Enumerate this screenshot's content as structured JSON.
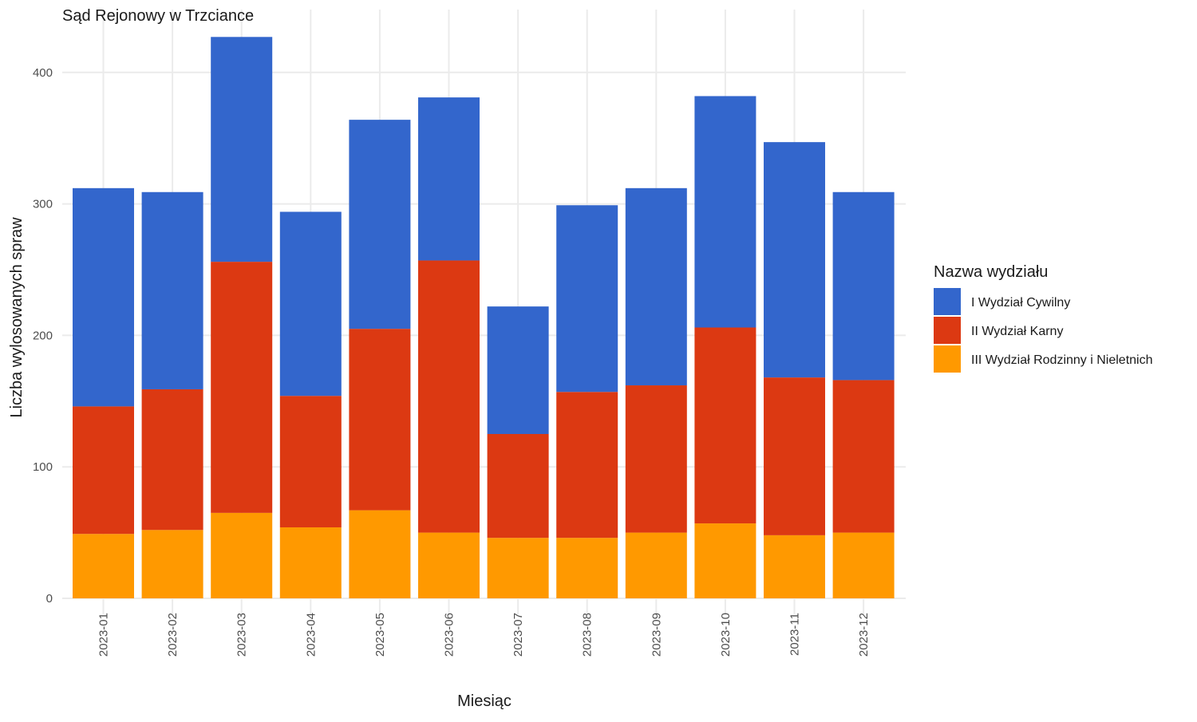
{
  "chart_data": {
    "type": "bar",
    "stacked": true,
    "title": "Sąd Rejonowy w Trzciance",
    "xlabel": "Miesiąc",
    "ylabel": "Liczba wylosowanych spraw",
    "ylim": [
      0,
      430
    ],
    "yticks": [
      0,
      100,
      200,
      300,
      400
    ],
    "grid": true,
    "legend_position": "right",
    "legend_title": "Nazwa wydziału",
    "categories": [
      "2023-01",
      "2023-02",
      "2023-03",
      "2023-04",
      "2023-05",
      "2023-06",
      "2023-07",
      "2023-08",
      "2023-09",
      "2023-10",
      "2023-11",
      "2023-12"
    ],
    "series": [
      {
        "name": "III Wydział Rodzinny i Nieletnich",
        "color": "#FF9900",
        "values": [
          49,
          52,
          65,
          54,
          67,
          50,
          46,
          46,
          50,
          57,
          48,
          50
        ]
      },
      {
        "name": "II Wydział Karny",
        "color": "#DC3912",
        "values": [
          97,
          107,
          191,
          100,
          138,
          207,
          79,
          111,
          112,
          149,
          120,
          116
        ]
      },
      {
        "name": "I Wydział Cywilny",
        "color": "#3366CC",
        "values": [
          166,
          150,
          171,
          140,
          159,
          124,
          97,
          142,
          150,
          176,
          179,
          143
        ]
      }
    ],
    "legend_order": [
      "I Wydział Cywilny",
      "II Wydział Karny",
      "III Wydział Rodzinny i Nieletnich"
    ]
  }
}
